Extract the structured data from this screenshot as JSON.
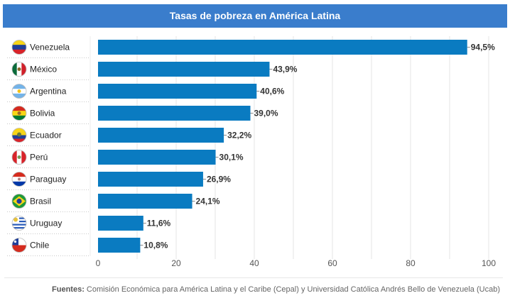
{
  "header": {
    "title": "Tasas de pobreza en América Latina"
  },
  "footer": {
    "label": "Fuentes:",
    "text": "Comisión Económica para América Latina y el Caribe (Cepal) y Universidad Católica Andrés Bello de Venezuela (Ucab)"
  },
  "colors": {
    "bar": "#0a7bc1",
    "header": "#3a7dcc"
  },
  "chart_data": {
    "type": "bar",
    "orientation": "horizontal",
    "title": "Tasas de pobreza en América Latina",
    "xlabel": "",
    "ylabel": "",
    "xlim": [
      0,
      100
    ],
    "xticks": [
      0,
      20,
      40,
      60,
      80,
      100
    ],
    "grid": true,
    "categories": [
      "Venezuela",
      "México",
      "Argentina",
      "Bolivia",
      "Ecuador",
      "Perú",
      "Paraguay",
      "Brasil",
      "Uruguay",
      "Chile"
    ],
    "flags": [
      "venezuela-flag-icon",
      "mexico-flag-icon",
      "argentina-flag-icon",
      "bolivia-flag-icon",
      "ecuador-flag-icon",
      "peru-flag-icon",
      "paraguay-flag-icon",
      "brazil-flag-icon",
      "uruguay-flag-icon",
      "chile-flag-icon"
    ],
    "values": [
      94.5,
      43.9,
      40.6,
      39.0,
      32.2,
      30.1,
      26.9,
      24.1,
      11.6,
      10.8
    ],
    "value_labels": [
      "94,5%",
      "43,9%",
      "40,6%",
      "39,0%",
      "32,2%",
      "30,1%",
      "26,9%",
      "24,1%",
      "11,6%",
      "10,8%"
    ]
  }
}
